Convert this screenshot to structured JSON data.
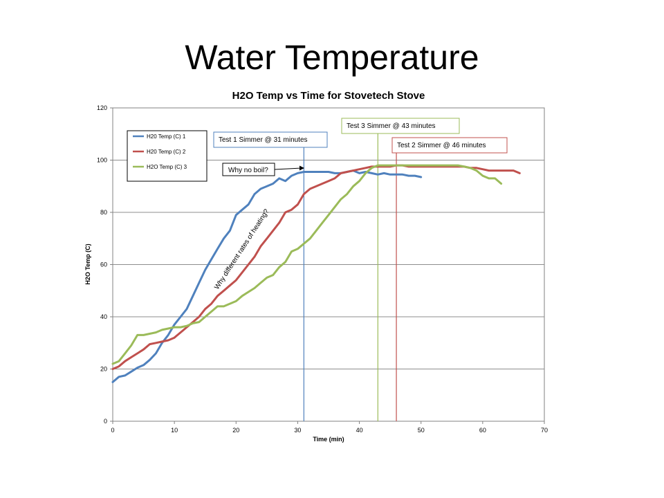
{
  "slide": {
    "title": "Water Temperature"
  },
  "chart_data": {
    "type": "line",
    "title": "H2O Temp vs Time for Stovetech Stove",
    "xlabel": "Time (min)",
    "ylabel": "H2O Temp (C)",
    "xlim": [
      0,
      70
    ],
    "ylim": [
      0,
      120
    ],
    "xticks": [
      0,
      10,
      20,
      30,
      40,
      50,
      60,
      70
    ],
    "yticks": [
      0,
      20,
      40,
      60,
      80,
      100,
      120
    ],
    "grid": "horizontal",
    "legend": "top-left",
    "series": [
      {
        "name": "H20 Temp (C) 1",
        "color": "#4f81bd",
        "x": [
          0,
          1,
          2,
          3,
          4,
          5,
          6,
          7,
          8,
          9,
          10,
          11,
          12,
          13,
          14,
          15,
          16,
          17,
          18,
          19,
          20,
          21,
          22,
          23,
          24,
          25,
          26,
          27,
          28,
          29,
          30,
          31,
          32,
          33,
          34,
          35,
          36,
          37,
          38,
          39,
          40,
          41,
          42,
          43,
          44,
          45,
          46,
          47,
          48,
          49,
          50
        ],
        "y": [
          15,
          17,
          17.5,
          19,
          20.5,
          21.5,
          23.5,
          26,
          30,
          33,
          37,
          40,
          43,
          48,
          53,
          58,
          62,
          66,
          70,
          73,
          79,
          81,
          83,
          87,
          89,
          90,
          91,
          93,
          92,
          94,
          95,
          95.5,
          95.5,
          95.5,
          95.5,
          95.5,
          95,
          95,
          95.5,
          96,
          95,
          95.5,
          95,
          94.5,
          95,
          94.5,
          94.5,
          94.5,
          94,
          94,
          93.5
        ]
      },
      {
        "name": "H20 Temp (C) 2",
        "color": "#c0504d",
        "x": [
          0,
          1,
          2,
          3,
          4,
          5,
          6,
          7,
          8,
          9,
          10,
          11,
          12,
          13,
          14,
          15,
          16,
          17,
          18,
          19,
          20,
          21,
          22,
          23,
          24,
          25,
          26,
          27,
          28,
          29,
          30,
          31,
          32,
          33,
          34,
          35,
          36,
          37,
          38,
          39,
          40,
          41,
          42,
          43,
          44,
          45,
          46,
          47,
          48,
          49,
          50,
          51,
          52,
          53,
          54,
          55,
          56,
          57,
          58,
          59,
          60,
          61,
          62,
          63,
          64,
          65,
          66
        ],
        "y": [
          20,
          21,
          23,
          24.5,
          26,
          27.5,
          29.5,
          30,
          30.5,
          31,
          32,
          34,
          36,
          38,
          40,
          43,
          45,
          48,
          50,
          52,
          54,
          57,
          60,
          63,
          67,
          70,
          73,
          76,
          80,
          81,
          83,
          87,
          89,
          90,
          91,
          92,
          93,
          95,
          95.5,
          96,
          96.5,
          97,
          97.5,
          97.5,
          97.5,
          97.5,
          98,
          98,
          97.5,
          97.5,
          97.5,
          97.5,
          97.5,
          97.5,
          97.5,
          97.5,
          97.5,
          97.5,
          97,
          97,
          96.5,
          96,
          96,
          96,
          96,
          96,
          95
        ]
      },
      {
        "name": "H2O Temp (C) 3",
        "color": "#9bbb59",
        "x": [
          0,
          1,
          2,
          3,
          4,
          5,
          6,
          7,
          8,
          9,
          10,
          11,
          12,
          13,
          14,
          15,
          16,
          17,
          18,
          19,
          20,
          21,
          22,
          23,
          24,
          25,
          26,
          27,
          28,
          29,
          30,
          31,
          32,
          33,
          34,
          35,
          36,
          37,
          38,
          39,
          40,
          41,
          42,
          43,
          44,
          45,
          46,
          47,
          48,
          49,
          50,
          51,
          52,
          53,
          54,
          55,
          56,
          57,
          58,
          59,
          60,
          61,
          62,
          63
        ],
        "y": [
          22,
          23,
          26,
          29,
          33,
          33,
          33.5,
          34,
          35,
          35.5,
          36,
          36,
          36.5,
          37.5,
          38,
          40,
          42,
          44,
          44,
          45,
          46,
          48,
          49.5,
          51,
          53,
          55,
          56,
          59,
          61,
          65,
          66,
          68,
          70,
          73,
          76,
          79,
          82,
          85,
          87,
          90,
          92,
          95,
          97,
          98,
          98,
          98,
          98,
          98,
          98,
          98,
          98,
          98,
          98,
          98,
          98,
          98,
          98,
          97.5,
          97,
          96,
          94,
          93,
          93,
          91
        ]
      }
    ],
    "annotations": [
      {
        "text": "Test 1 Simmer @ 31 minutes",
        "x": 31,
        "color": "#4f81bd"
      },
      {
        "text": "Test 3 Simmer @ 43 minutes",
        "x": 43,
        "color": "#9bbb59"
      },
      {
        "text": "Test 2 Simmer @ 46 minutes",
        "x": 46,
        "color": "#c0504d"
      }
    ],
    "callouts": [
      {
        "text": "Why no boil?"
      },
      {
        "text": "Why different rates of heating?"
      }
    ]
  }
}
